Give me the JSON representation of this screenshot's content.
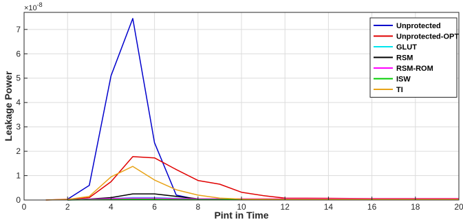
{
  "chart_data": {
    "type": "line",
    "title": "",
    "xlabel": "Pint in Time",
    "ylabel": "Leakage Power",
    "exponent_label": "×10",
    "exponent_power": "-8",
    "xlim": [
      0,
      20
    ],
    "ylim": [
      0,
      7.7
    ],
    "xticks": [
      0,
      2,
      4,
      6,
      8,
      10,
      12,
      14,
      16,
      18,
      20
    ],
    "yticks": [
      0,
      1,
      2,
      3,
      4,
      5,
      6,
      7
    ],
    "grid": true,
    "legend_position": "top-right",
    "series": [
      {
        "name": "Unprotected",
        "color": "#0000cc",
        "points": [
          [
            2,
            0.03
          ],
          [
            3,
            0.6
          ],
          [
            4,
            5.1
          ],
          [
            5,
            7.45
          ],
          [
            6,
            2.35
          ],
          [
            7,
            0.2
          ],
          [
            8,
            0.02
          ],
          [
            9,
            0.02
          ],
          [
            10,
            0.02
          ],
          [
            12,
            0.02
          ],
          [
            14,
            0.02
          ],
          [
            16,
            0.02
          ],
          [
            18,
            0.02
          ],
          [
            20,
            0.02
          ]
        ]
      },
      {
        "name": "Unprotected-OPT",
        "color": "#e00000",
        "points": [
          [
            1,
            0.0
          ],
          [
            2,
            0.03
          ],
          [
            3,
            0.1
          ],
          [
            4,
            0.75
          ],
          [
            5,
            1.78
          ],
          [
            6,
            1.73
          ],
          [
            7,
            1.25
          ],
          [
            8,
            0.8
          ],
          [
            9,
            0.65
          ],
          [
            10,
            0.32
          ],
          [
            11,
            0.18
          ],
          [
            12,
            0.08
          ],
          [
            14,
            0.07
          ],
          [
            16,
            0.06
          ],
          [
            18,
            0.06
          ],
          [
            20,
            0.06
          ]
        ]
      },
      {
        "name": "GLUT",
        "color": "#00e5ee",
        "points": [
          [
            2,
            0.0
          ],
          [
            3,
            0.03
          ],
          [
            4,
            0.06
          ],
          [
            5,
            0.1
          ],
          [
            6,
            0.1
          ],
          [
            7,
            0.07
          ],
          [
            8,
            0.05
          ],
          [
            9,
            0.05
          ],
          [
            10,
            0.05
          ],
          [
            12,
            0.05
          ],
          [
            14,
            0.05
          ],
          [
            16,
            0.05
          ],
          [
            18,
            0.05
          ],
          [
            20,
            0.05
          ]
        ]
      },
      {
        "name": "RSM",
        "color": "#000000",
        "points": [
          [
            2,
            0.0
          ],
          [
            3,
            0.04
          ],
          [
            4,
            0.1
          ],
          [
            5,
            0.25
          ],
          [
            6,
            0.25
          ],
          [
            7,
            0.15
          ],
          [
            8,
            0.05
          ],
          [
            9,
            0.04
          ],
          [
            10,
            0.03
          ],
          [
            12,
            0.02
          ],
          [
            14,
            0.02
          ],
          [
            16,
            0.02
          ],
          [
            18,
            0.02
          ],
          [
            20,
            0.02
          ]
        ]
      },
      {
        "name": "RSM-ROM",
        "color": "#ff00ff",
        "points": [
          [
            2,
            0.0
          ],
          [
            3,
            0.03
          ],
          [
            4,
            0.06
          ],
          [
            5,
            0.08
          ],
          [
            6,
            0.08
          ],
          [
            7,
            0.06
          ],
          [
            8,
            0.05
          ],
          [
            9,
            0.05
          ],
          [
            10,
            0.05
          ],
          [
            12,
            0.05
          ],
          [
            14,
            0.05
          ],
          [
            16,
            0.05
          ],
          [
            18,
            0.05
          ],
          [
            20,
            0.05
          ]
        ]
      },
      {
        "name": "ISW",
        "color": "#00cc00",
        "points": [
          [
            2,
            0.0
          ],
          [
            3,
            0.01
          ],
          [
            4,
            0.02
          ],
          [
            5,
            0.03
          ],
          [
            6,
            0.03
          ],
          [
            7,
            0.02
          ],
          [
            8,
            0.02
          ],
          [
            9,
            0.02
          ],
          [
            10,
            0.02
          ],
          [
            12,
            0.02
          ],
          [
            14,
            0.02
          ],
          [
            16,
            0.02
          ],
          [
            18,
            0.02
          ],
          [
            20,
            0.02
          ]
        ]
      },
      {
        "name": "TI",
        "color": "#e8a317",
        "points": [
          [
            1,
            0.0
          ],
          [
            2,
            0.02
          ],
          [
            3,
            0.15
          ],
          [
            4,
            0.95
          ],
          [
            5,
            1.38
          ],
          [
            6,
            0.82
          ],
          [
            7,
            0.42
          ],
          [
            8,
            0.2
          ],
          [
            9,
            0.08
          ],
          [
            10,
            0.04
          ],
          [
            12,
            0.03
          ],
          [
            14,
            0.03
          ],
          [
            16,
            0.03
          ],
          [
            18,
            0.03
          ],
          [
            20,
            0.03
          ]
        ]
      }
    ]
  }
}
